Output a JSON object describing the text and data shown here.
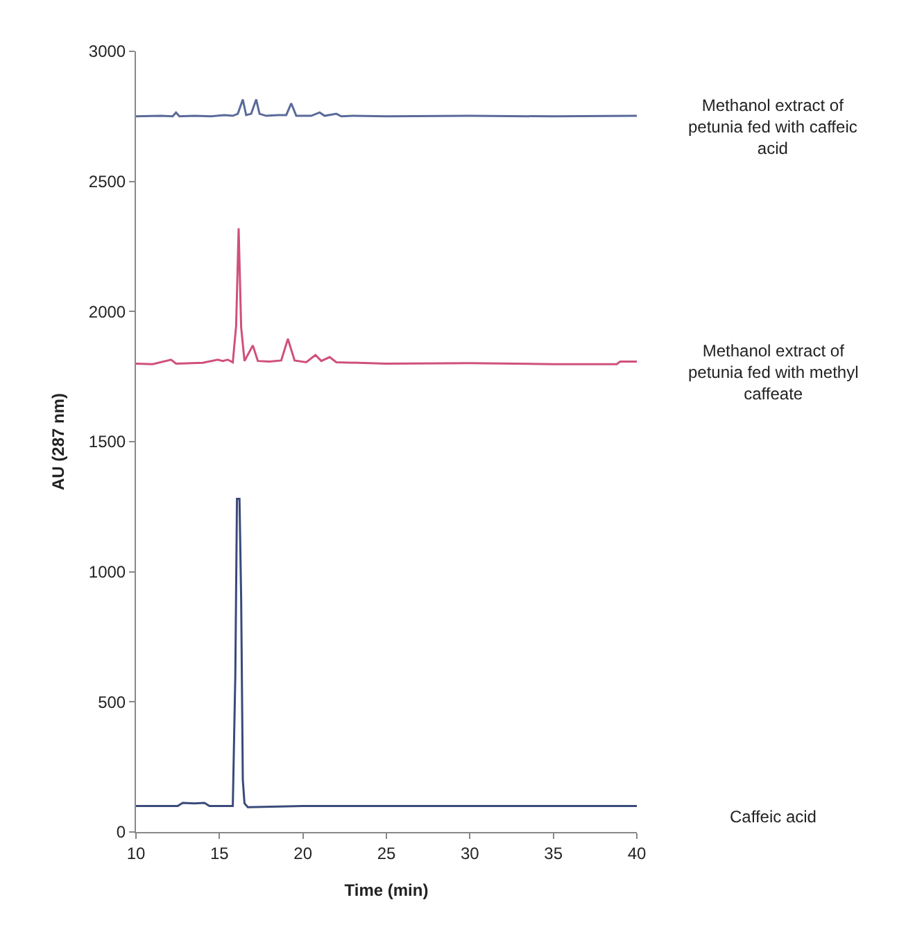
{
  "chart_data": {
    "type": "line",
    "xlabel": "Time (min)",
    "ylabel": "AU (287 nm)",
    "xlim": [
      10,
      40
    ],
    "xticks": [
      10,
      15,
      20,
      25,
      30,
      35,
      40
    ],
    "ylim": [
      0,
      3000
    ],
    "yticks": [
      0,
      500,
      1000,
      1500,
      2000,
      2500,
      3000
    ],
    "grid": false,
    "legend": false,
    "marker": "none",
    "line_style": "solid",
    "series": [
      {
        "name": "Methanol extract of petunia fed with caffeic acid",
        "color": "#5a6a9a",
        "x": [
          10,
          11.5,
          12.2,
          12.4,
          12.6,
          13.5,
          14.5,
          15.3,
          15.8,
          16.1,
          16.4,
          16.6,
          16.9,
          17.2,
          17.4,
          17.8,
          18.5,
          19.0,
          19.3,
          19.6,
          20.5,
          21.0,
          21.3,
          22.0,
          22.3,
          23.0,
          25,
          30,
          35,
          40
        ],
        "values": [
          2750,
          2752,
          2750,
          2765,
          2750,
          2752,
          2750,
          2755,
          2752,
          2760,
          2815,
          2755,
          2760,
          2815,
          2760,
          2752,
          2755,
          2755,
          2800,
          2752,
          2752,
          2765,
          2752,
          2760,
          2750,
          2752,
          2750,
          2752,
          2750,
          2752
        ]
      },
      {
        "name": "Methanol extract of petunia fed with methyl caffeate",
        "color": "#d0507a",
        "x": [
          10,
          11,
          12.1,
          12.4,
          14,
          14.9,
          15.2,
          15.5,
          15.8,
          16.0,
          16.15,
          16.3,
          16.5,
          17.0,
          17.3,
          18,
          18.7,
          19.1,
          19.5,
          20.2,
          20.75,
          21.1,
          21.6,
          22.0,
          25,
          30,
          35,
          38.8,
          39,
          40
        ],
        "values": [
          1800,
          1798,
          1815,
          1800,
          1803,
          1815,
          1810,
          1815,
          1805,
          1945,
          2320,
          1940,
          1810,
          1870,
          1810,
          1808,
          1812,
          1895,
          1812,
          1805,
          1833,
          1810,
          1825,
          1805,
          1800,
          1802,
          1798,
          1798,
          1808,
          1808
        ]
      },
      {
        "name": "Caffeic acid",
        "color": "#3a4a7a",
        "x": [
          10,
          12.5,
          12.8,
          13.5,
          14.1,
          14.4,
          15.8,
          15.95,
          16.05,
          16.2,
          16.3,
          16.4,
          16.5,
          16.7,
          20,
          30,
          40
        ],
        "values": [
          100,
          100,
          112,
          110,
          112,
          100,
          100,
          600,
          1280,
          1280,
          900,
          200,
          110,
          95,
          100,
          100,
          100
        ]
      }
    ]
  }
}
